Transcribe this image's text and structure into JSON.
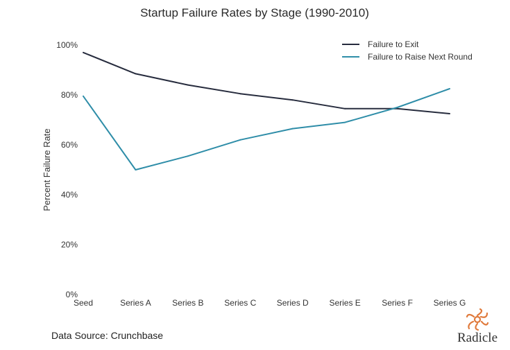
{
  "chart_data": {
    "type": "line",
    "title": "Startup Failure Rates by Stage (1990-2010)",
    "xlabel": "",
    "ylabel": "Percent Failure Rate",
    "categories": [
      "Seed",
      "Series A",
      "Series B",
      "Series C",
      "Series D",
      "Series E",
      "Series F",
      "Series G"
    ],
    "yticks": [
      "0%",
      "20%",
      "40%",
      "60%",
      "80%",
      "100%"
    ],
    "ylim": [
      0,
      100
    ],
    "grid": false,
    "legend_position": "top-right",
    "series": [
      {
        "name": "Failure to Exit",
        "color": "#262b3d",
        "values": [
          97,
          88.5,
          84,
          80.5,
          78,
          74.5,
          74.5,
          72.5
        ]
      },
      {
        "name": "Failure to Raise Next Round",
        "color": "#2e8da8",
        "values": [
          79.5,
          50,
          55.5,
          62,
          66.5,
          69,
          75,
          82.5
        ]
      }
    ]
  },
  "footer": {
    "source": "Data Source: Crunchbase",
    "brand": "Radicle",
    "brand_color": "#e07a3c",
    "brand_icon": "radicle-logo-icon"
  }
}
